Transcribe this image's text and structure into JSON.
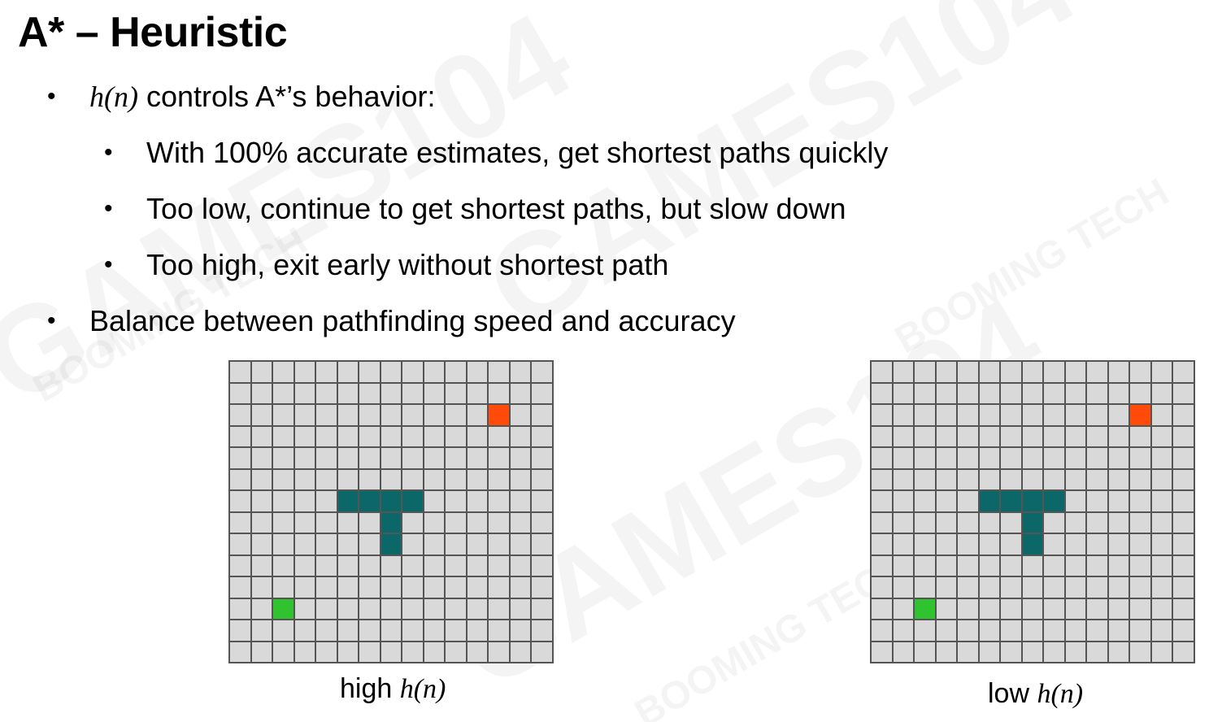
{
  "slide": {
    "title": "A* – Heuristic",
    "bullets": [
      {
        "level": 1,
        "math": "h(n)",
        "text": " controls A*’s behavior:"
      },
      {
        "level": 2,
        "math": "",
        "text": "With 100% accurate estimates, get shortest paths quickly"
      },
      {
        "level": 2,
        "math": "",
        "text": "Too low, continue to get shortest paths, but slow down"
      },
      {
        "level": 2,
        "math": "",
        "text": "Too high, exit early without shortest path"
      },
      {
        "level": 1,
        "math": "",
        "text": "Balance between pathfinding speed and accuracy"
      }
    ],
    "bullet_symbol": "•",
    "watermark_texts": [
      "GAMES104",
      "BOOMING TECH"
    ]
  },
  "figures": [
    {
      "caption_text": "high ",
      "caption_math": "h(n)"
    },
    {
      "caption_text": "low ",
      "caption_math": "h(n)"
    }
  ],
  "grid": {
    "columns": 15,
    "rows": 14,
    "start": {
      "col": 2,
      "row": 11
    },
    "goal": {
      "col": 12,
      "row": 2
    },
    "walls": [
      [
        5,
        6
      ],
      [
        6,
        6
      ],
      [
        7,
        6
      ],
      [
        8,
        6
      ],
      [
        7,
        7
      ],
      [
        7,
        8
      ]
    ],
    "colors": {
      "empty": "#d9d9d9",
      "line": "#555555",
      "start": "#2fc42f",
      "goal": "#ff4a0a",
      "wall": "#0b6768"
    }
  }
}
